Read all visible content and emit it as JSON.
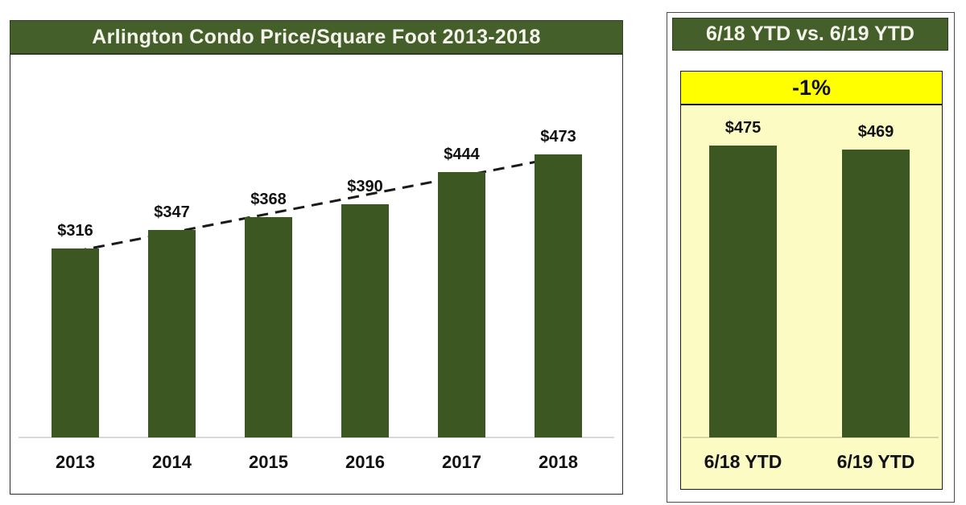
{
  "left_panel": {
    "title": "Arlington Condo Price/Square Foot 2013-2018"
  },
  "right_panel": {
    "title": "6/18 YTD vs. 6/19 YTD",
    "change_badge": "-1%"
  },
  "colors": {
    "header_green": "#455f2a",
    "bar_green": "#3c5722",
    "pale_yellow": "#fbfbc3",
    "bright_yellow": "#ffff00",
    "title_text": "#f4f4ec",
    "label_text": "#111111",
    "trendline": "#1a1a1a",
    "baseline_gray": "#d9d9d9"
  },
  "chart_data": [
    {
      "type": "bar",
      "title": "Arlington Condo Price/Square Foot 2013-2018",
      "categories": [
        "2013",
        "2014",
        "2015",
        "2016",
        "2017",
        "2018"
      ],
      "values": [
        316,
        347,
        368,
        390,
        444,
        473
      ],
      "value_labels": [
        "$316",
        "$347",
        "$368",
        "$390",
        "$444",
        "$473"
      ],
      "xlabel": "",
      "ylabel": "",
      "ylim": [
        0,
        640
      ],
      "grid": false,
      "legend": false,
      "trendline": "dashed-linear"
    },
    {
      "type": "bar",
      "title": "6/18 YTD vs. 6/19 YTD",
      "categories": [
        "6/18 YTD",
        "6/19 YTD"
      ],
      "values": [
        475,
        469
      ],
      "value_labels": [
        "$475",
        "$469"
      ],
      "annotation": "-1%",
      "xlabel": "",
      "ylabel": "",
      "ylim": [
        0,
        538
      ],
      "grid": false,
      "legend": false
    }
  ]
}
